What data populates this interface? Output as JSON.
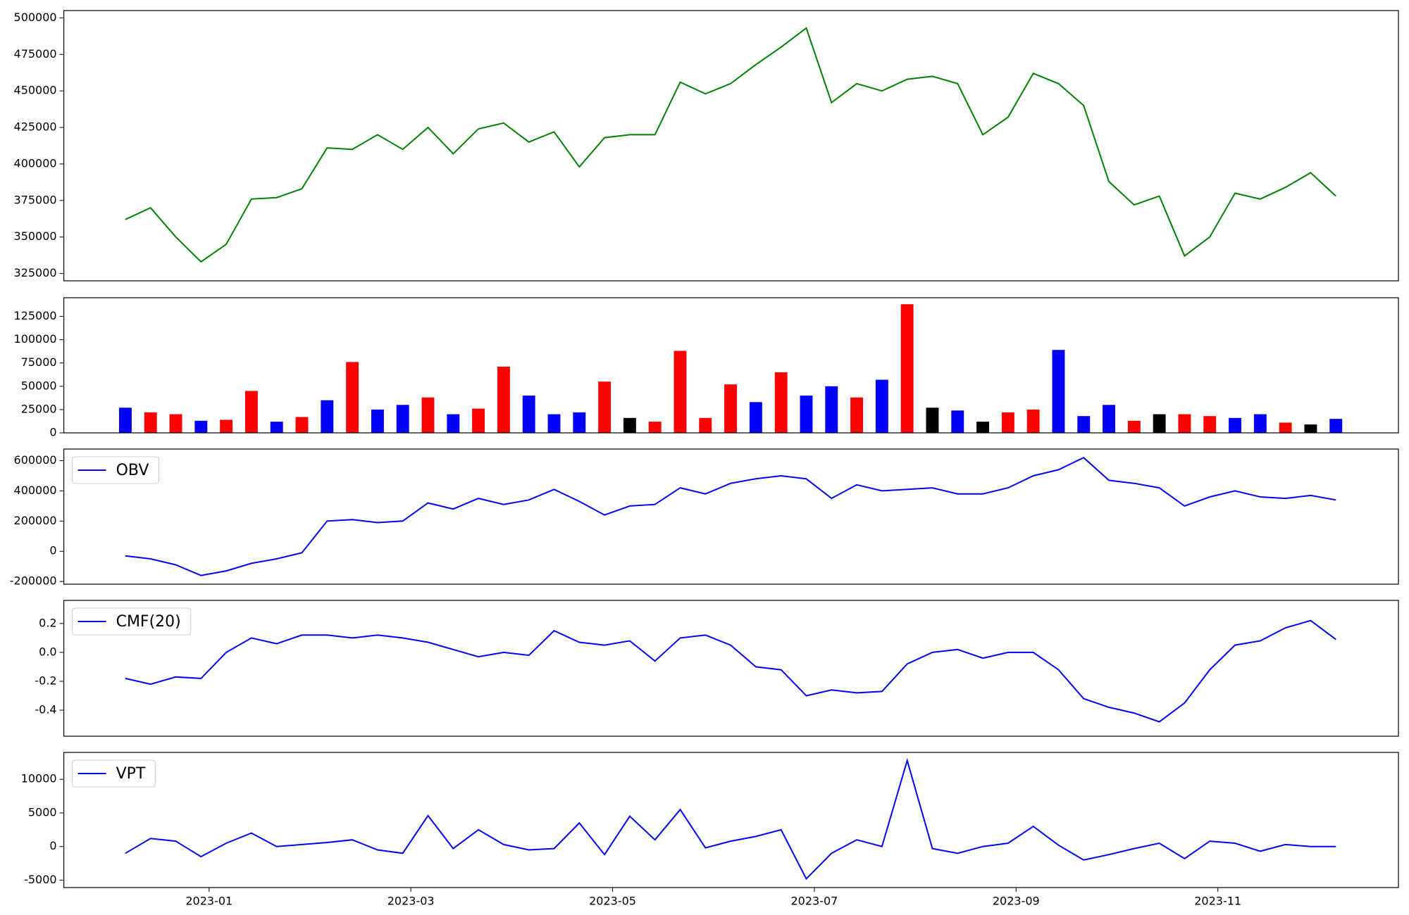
{
  "chart_data": [
    {
      "type": "line",
      "color": "#008000",
      "x": [
        0.17,
        0.42,
        0.67,
        0.92,
        1.17,
        1.42,
        1.67,
        1.92,
        2.17,
        2.42,
        2.67,
        2.92,
        3.17,
        3.42,
        3.67,
        3.92,
        4.17,
        4.42,
        4.67,
        4.92,
        5.17,
        5.42,
        5.67,
        5.92,
        6.17,
        6.42,
        6.67,
        6.92,
        7.17,
        7.42,
        7.67,
        7.92,
        8.17,
        8.42,
        8.67,
        8.92,
        9.17,
        9.42,
        9.67,
        9.92,
        10.17,
        10.42,
        10.67,
        10.92,
        11.17,
        11.42,
        11.67,
        11.92,
        12.17
      ],
      "values": [
        362000,
        370000,
        350000,
        333000,
        345000,
        376000,
        377000,
        383000,
        411000,
        410000,
        420000,
        410000,
        425000,
        407000,
        424000,
        428000,
        415000,
        422000,
        398000,
        418000,
        420000,
        420000,
        456000,
        448000,
        455000,
        468000,
        480000,
        493000,
        442000,
        455000,
        450000,
        458000,
        460000,
        455000,
        420000,
        432000,
        462000,
        455000,
        440000,
        388000,
        372000,
        378000,
        337000,
        350000,
        380000,
        376000,
        384000,
        394000,
        378000
      ],
      "xlim": [
        -0.44,
        12.79
      ],
      "ylim": [
        320000,
        505000
      ],
      "yticks": [
        325000,
        350000,
        375000,
        400000,
        425000,
        450000,
        475000,
        500000
      ]
    },
    {
      "type": "bar",
      "x": [
        0.17,
        0.42,
        0.67,
        0.92,
        1.17,
        1.42,
        1.67,
        1.92,
        2.17,
        2.42,
        2.67,
        2.92,
        3.17,
        3.42,
        3.67,
        3.92,
        4.17,
        4.42,
        4.67,
        4.92,
        5.17,
        5.42,
        5.67,
        5.92,
        6.17,
        6.42,
        6.67,
        6.92,
        7.17,
        7.42,
        7.67,
        7.92,
        8.17,
        8.42,
        8.67,
        8.92,
        9.17,
        9.42,
        9.67,
        9.92,
        10.17,
        10.42,
        10.67,
        10.92,
        11.17,
        11.42,
        11.67,
        11.92,
        12.17
      ],
      "values": [
        27000,
        22000,
        20000,
        13000,
        14000,
        45000,
        12000,
        17000,
        35000,
        76000,
        25000,
        30000,
        38000,
        20000,
        26000,
        71000,
        40000,
        20000,
        22000,
        55000,
        16000,
        12000,
        88000,
        16000,
        52000,
        33000,
        65000,
        40000,
        50000,
        38000,
        57000,
        138000,
        27000,
        24000,
        12000,
        22000,
        25000,
        89000,
        18000,
        30000,
        13000,
        20000,
        20000,
        18000,
        16000,
        20000,
        11000,
        9000,
        15000
      ],
      "colors": [
        "#0000ff",
        "#ff0000",
        "#ff0000",
        "#0000ff",
        "#ff0000",
        "#ff0000",
        "#0000ff",
        "#ff0000",
        "#0000ff",
        "#ff0000",
        "#0000ff",
        "#0000ff",
        "#ff0000",
        "#0000ff",
        "#ff0000",
        "#ff0000",
        "#0000ff",
        "#0000ff",
        "#0000ff",
        "#ff0000",
        "#000000",
        "#ff0000",
        "#ff0000",
        "#ff0000",
        "#ff0000",
        "#0000ff",
        "#ff0000",
        "#0000ff",
        "#0000ff",
        "#ff0000",
        "#0000ff",
        "#ff0000",
        "#000000",
        "#0000ff",
        "#000000",
        "#ff0000",
        "#ff0000",
        "#0000ff",
        "#0000ff",
        "#0000ff",
        "#ff0000",
        "#000000",
        "#ff0000",
        "#ff0000",
        "#0000ff",
        "#0000ff",
        "#ff0000",
        "#000000",
        "#0000ff"
      ],
      "xlim": [
        -0.44,
        12.79
      ],
      "ylim": [
        0,
        145000
      ],
      "yticks": [
        0,
        25000,
        50000,
        75000,
        100000,
        125000
      ]
    },
    {
      "type": "line",
      "legend": "upper left",
      "x": [
        0.17,
        0.42,
        0.67,
        0.92,
        1.17,
        1.42,
        1.67,
        1.92,
        2.17,
        2.42,
        2.67,
        2.92,
        3.17,
        3.42,
        3.67,
        3.92,
        4.17,
        4.42,
        4.67,
        4.92,
        5.17,
        5.42,
        5.67,
        5.92,
        6.17,
        6.42,
        6.67,
        6.92,
        7.17,
        7.42,
        7.67,
        7.92,
        8.17,
        8.42,
        8.67,
        8.92,
        9.17,
        9.42,
        9.67,
        9.92,
        10.17,
        10.42,
        10.67,
        10.92,
        11.17,
        11.42,
        11.67,
        11.92,
        12.17
      ],
      "series": [
        {
          "name": "OBV",
          "color": "#0000ff",
          "values": [
            -30000,
            -50000,
            -90000,
            -160000,
            -130000,
            -80000,
            -50000,
            -10000,
            200000,
            210000,
            190000,
            200000,
            320000,
            280000,
            350000,
            310000,
            340000,
            410000,
            330000,
            240000,
            300000,
            310000,
            420000,
            380000,
            450000,
            480000,
            500000,
            480000,
            350000,
            440000,
            400000,
            410000,
            420000,
            380000,
            380000,
            420000,
            500000,
            540000,
            620000,
            470000,
            450000,
            420000,
            300000,
            360000,
            400000,
            360000,
            350000,
            370000,
            340000
          ]
        }
      ],
      "xlim": [
        -0.44,
        12.79
      ],
      "ylim": [
        -218000,
        677000
      ],
      "yticks": [
        -200000,
        0,
        200000,
        400000,
        600000
      ]
    },
    {
      "type": "line",
      "legend": "upper left",
      "x": [
        0.17,
        0.42,
        0.67,
        0.92,
        1.17,
        1.42,
        1.67,
        1.92,
        2.17,
        2.42,
        2.67,
        2.92,
        3.17,
        3.42,
        3.67,
        3.92,
        4.17,
        4.42,
        4.67,
        4.92,
        5.17,
        5.42,
        5.67,
        5.92,
        6.17,
        6.42,
        6.67,
        6.92,
        7.17,
        7.42,
        7.67,
        7.92,
        8.17,
        8.42,
        8.67,
        8.92,
        9.17,
        9.42,
        9.67,
        9.92,
        10.17,
        10.42,
        10.67,
        10.92,
        11.17,
        11.42,
        11.67,
        11.92,
        12.17
      ],
      "series": [
        {
          "name": "CMF(20)",
          "color": "#0000ff",
          "values": [
            -0.18,
            -0.22,
            -0.17,
            -0.18,
            0.0,
            0.1,
            0.06,
            0.12,
            0.12,
            0.1,
            0.12,
            0.1,
            0.07,
            0.02,
            -0.03,
            0.0,
            -0.02,
            0.15,
            0.07,
            0.05,
            0.08,
            -0.06,
            0.1,
            0.12,
            0.05,
            -0.1,
            -0.12,
            -0.3,
            -0.26,
            -0.28,
            -0.27,
            -0.08,
            0.0,
            0.02,
            -0.04,
            0.0,
            0.0,
            -0.12,
            -0.32,
            -0.38,
            -0.42,
            -0.48,
            -0.35,
            -0.12,
            0.05,
            0.08,
            0.17,
            0.22,
            0.09
          ]
        }
      ],
      "xlim": [
        -0.44,
        12.79
      ],
      "ylim": [
        -0.58,
        0.36
      ],
      "yticks": [
        -0.4,
        -0.2,
        {
          "value": 0,
          "label": "0.0"
        },
        0.2
      ]
    },
    {
      "type": "line",
      "legend": "upper left",
      "x": [
        0.17,
        0.42,
        0.67,
        0.92,
        1.17,
        1.42,
        1.67,
        1.92,
        2.17,
        2.42,
        2.67,
        2.92,
        3.17,
        3.42,
        3.67,
        3.92,
        4.17,
        4.42,
        4.67,
        4.92,
        5.17,
        5.42,
        5.67,
        5.92,
        6.17,
        6.42,
        6.67,
        6.92,
        7.17,
        7.42,
        7.67,
        7.92,
        8.17,
        8.42,
        8.67,
        8.92,
        9.17,
        9.42,
        9.67,
        9.92,
        10.17,
        10.42,
        10.67,
        10.92,
        11.17,
        11.42,
        11.67,
        11.92,
        12.17
      ],
      "series": [
        {
          "name": "VPT",
          "color": "#0000ff",
          "values": [
            -1000,
            1200,
            800,
            -1500,
            500,
            2000,
            0,
            300,
            600,
            1000,
            -500,
            -1000,
            4600,
            -300,
            2500,
            300,
            -500,
            -300,
            3500,
            -1200,
            4500,
            1000,
            5500,
            -200,
            800,
            1500,
            2500,
            -4800,
            -1000,
            1000,
            0,
            12800,
            -300,
            -1000,
            0,
            500,
            3000,
            200,
            -2000,
            -1200,
            -300,
            500,
            -1800,
            800,
            500,
            -700,
            300,
            0,
            0
          ]
        }
      ],
      "xlim": [
        -0.44,
        12.79
      ],
      "ylim": [
        -6100,
        14000
      ],
      "yticks": [
        -5000,
        0,
        5000,
        10000
      ],
      "xticks": [
        {
          "value": 1,
          "label": "2023-01"
        },
        {
          "value": 3,
          "label": "2023-03"
        },
        {
          "value": 5,
          "label": "2023-05"
        },
        {
          "value": 7,
          "label": "2023-07"
        },
        {
          "value": 9,
          "label": "2023-09"
        },
        {
          "value": 11,
          "label": "2023-11"
        }
      ]
    }
  ]
}
